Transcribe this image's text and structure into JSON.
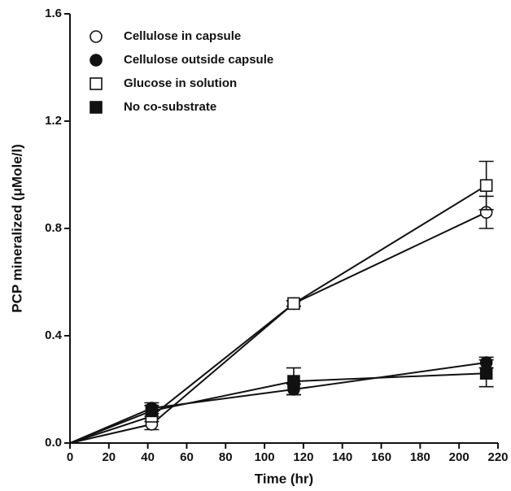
{
  "chart_data": {
    "type": "line",
    "xlabel": "Time (hr)",
    "ylabel": "PCP mineralized (μMole/l)",
    "x": [
      0,
      42,
      115,
      214
    ],
    "series": [
      {
        "name": "Cellulose in capsule",
        "color": "#111111",
        "marker": "open-circle",
        "values": [
          0,
          0.07,
          0.52,
          0.86
        ],
        "errors": [
          null,
          0.02,
          0.01,
          0.06
        ]
      },
      {
        "name": "Cellulose outside capsule",
        "color": "#111111",
        "marker": "filled-circle",
        "values": [
          0,
          0.13,
          0.2,
          0.3
        ],
        "errors": [
          null,
          0.02,
          0.02,
          0.02
        ]
      },
      {
        "name": "Glucose in solution",
        "color": "#111111",
        "marker": "open-square",
        "values": [
          0,
          0.1,
          0.52,
          0.96
        ],
        "errors": [
          null,
          0.02,
          0.01,
          0.09
        ]
      },
      {
        "name": "No co-substrate",
        "color": "#111111",
        "marker": "filled-square",
        "values": [
          0,
          0.12,
          0.23,
          0.26
        ],
        "errors": [
          null,
          0.02,
          0.05,
          0.05
        ]
      }
    ],
    "xlim": [
      0,
      220
    ],
    "xticks": [
      0,
      20,
      40,
      60,
      80,
      100,
      120,
      140,
      160,
      180,
      200,
      220
    ],
    "ylim": [
      0,
      1.6
    ],
    "yticks": [
      {
        "value": 0,
        "label": "0.0"
      },
      0.4,
      0.8,
      1.2,
      1.6
    ],
    "legend": "upper-left"
  }
}
